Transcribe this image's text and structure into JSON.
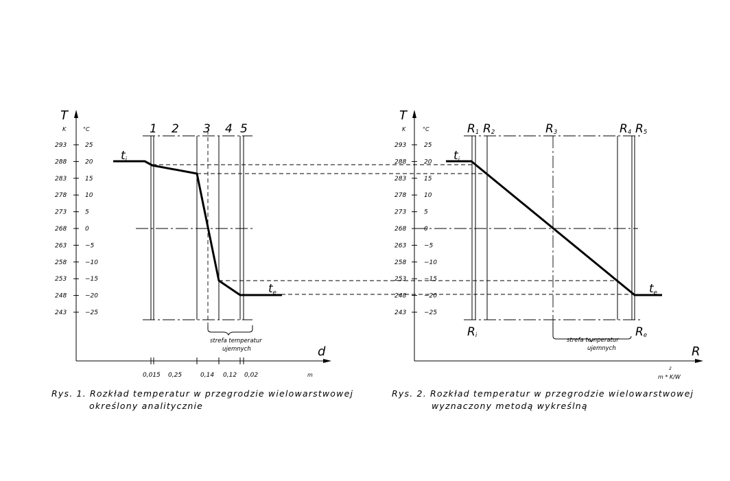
{
  "fig1": {
    "axis_T": "T",
    "unit_K": "K",
    "unit_C": "°C",
    "axis_d": "d",
    "unit_m": "m",
    "kelvin_ticks": [
      "293",
      "288",
      "283",
      "278",
      "273",
      "268",
      "263",
      "258",
      "253",
      "248",
      "243"
    ],
    "celsius_ticks": [
      "25",
      "20",
      "15",
      "10",
      "5",
      "0",
      "−5",
      "−10",
      "−15",
      "−20",
      "−25"
    ],
    "layer_labels": [
      "1",
      "2",
      "3",
      "4",
      "5"
    ],
    "thickness_labels": [
      "0,015",
      "0,25",
      "0,14",
      "0,12",
      "0,02"
    ],
    "ti_main": "t",
    "ti_sub": "i",
    "te_main": "t",
    "te_sub": "e",
    "zone_line1": "strefa  temperatur",
    "zone_line2": "ujemnych",
    "caption_line1": "Rys.  1.  Rozkład  temperatur  w  przegrodzie  wielowarstwowej",
    "caption_line2": "określony  analitycznie"
  },
  "fig2": {
    "axis_T": "T",
    "unit_K": "K",
    "unit_C": "°C",
    "axis_R": "R",
    "unit_R_main": "m  * K/W",
    "unit_R_sup": "2",
    "kelvin_ticks": [
      "293",
      "288",
      "283",
      "278",
      "273",
      "268",
      "263",
      "258",
      "253",
      "248",
      "243"
    ],
    "celsius_ticks": [
      "25",
      "20",
      "15",
      "10",
      "5",
      "0",
      "−5",
      "−10",
      "−15",
      "−20",
      "−25"
    ],
    "R_labels": [
      {
        "main": "R",
        "sub": "1"
      },
      {
        "main": "R",
        "sub": "2"
      },
      {
        "main": "R",
        "sub": "3"
      },
      {
        "main": "R",
        "sub": "4"
      },
      {
        "main": "R",
        "sub": "5"
      }
    ],
    "Ri_main": "R",
    "Ri_sub": "i",
    "Re_main": "R",
    "Re_sub": "e",
    "ti_main": "t",
    "ti_sub": "i",
    "te_main": "t",
    "te_sub": "e",
    "zone_line1": "strefa  temperatur",
    "zone_line2": "ujemnych",
    "caption_line1": "Rys.  2.  Rozkład  temperatur  w  przegrodzie  wielowarstwowej",
    "caption_line2": "wyznaczony  metodą  wykreślną"
  }
}
